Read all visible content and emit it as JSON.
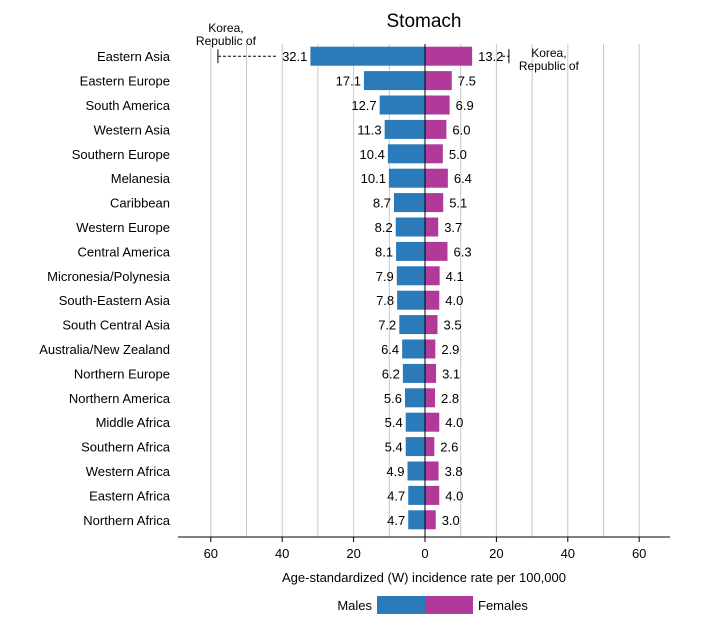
{
  "chart_data": {
    "type": "bar",
    "title": "Stomach",
    "xlabel": "Age-standardized (W) incidence rate per 100,000",
    "xlim": [
      -70,
      70
    ],
    "xticks": [
      60,
      40,
      20,
      0,
      20,
      40,
      60
    ],
    "xtick_values": [
      -60,
      -40,
      -20,
      0,
      20,
      40,
      60
    ],
    "grid": "vertical",
    "legend_position": "bottom",
    "categories": [
      "Eastern Asia",
      "Eastern Europe",
      "South America",
      "Western Asia",
      "Southern Europe",
      "Melanesia",
      "Caribbean",
      "Western Europe",
      "Central America",
      "Micronesia/Polynesia",
      "South-Eastern Asia",
      "South Central Asia",
      "Australia/New Zealand",
      "Northern Europe",
      "Northern America",
      "Middle Africa",
      "Southern Africa",
      "Western Africa",
      "Eastern Africa",
      "Northern Africa"
    ],
    "series": [
      {
        "name": "Males",
        "color": "#2b7bba",
        "values": [
          32.1,
          17.1,
          12.7,
          11.3,
          10.4,
          10.1,
          8.7,
          8.2,
          8.1,
          7.9,
          7.8,
          7.2,
          6.4,
          6.2,
          5.6,
          5.4,
          5.4,
          4.9,
          4.7,
          4.7
        ],
        "labels": [
          "32.1",
          "17.1",
          "12.7",
          "11.3",
          "10.4",
          "10.1",
          "8.7",
          "8.2",
          "8.1",
          "7.9",
          "7.8",
          "7.2",
          "6.4",
          "6.2",
          "5.6",
          "5.4",
          "5.4",
          "4.9",
          "4.7",
          "4.7"
        ]
      },
      {
        "name": "Females",
        "color": "#b0399a",
        "values": [
          13.2,
          7.5,
          6.9,
          6.0,
          5.0,
          6.4,
          5.1,
          3.7,
          6.3,
          4.1,
          4.0,
          3.5,
          2.9,
          3.1,
          2.8,
          4.0,
          2.6,
          3.8,
          4.0,
          3.0
        ],
        "labels": [
          "13.2",
          "7.5",
          "6.9",
          "6.0",
          "5.0",
          "6.4",
          "5.1",
          "3.7",
          "6.3",
          "4.1",
          "4.0",
          "3.5",
          "2.9",
          "3.1",
          "2.8",
          "4.0",
          "2.6",
          "3.8",
          "4.0",
          "3.0"
        ]
      }
    ],
    "annotations": [
      {
        "text": [
          "Korea,",
          "Republic of"
        ],
        "series": "Males",
        "value": 58
      },
      {
        "text": [
          "Korea,",
          "Republic of"
        ],
        "series": "Females",
        "value": 23.5
      }
    ]
  }
}
